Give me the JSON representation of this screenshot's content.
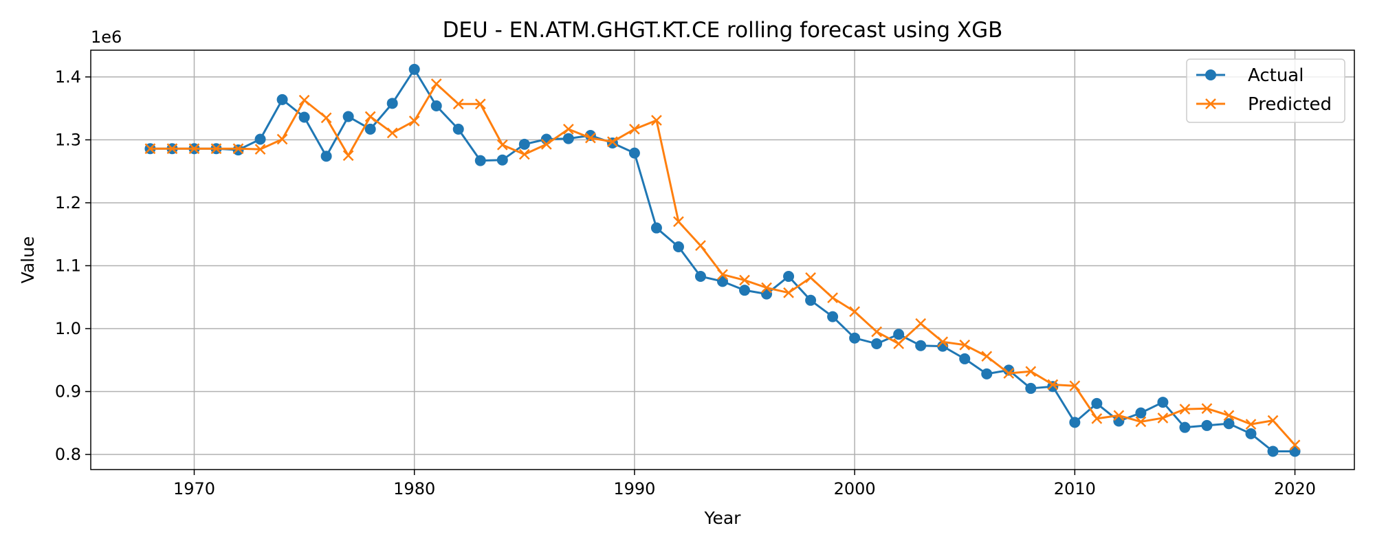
{
  "chart_data": {
    "type": "line",
    "title": "DEU - EN.ATM.GHGT.KT.CE rolling forecast using XGB",
    "xlabel": "Year",
    "ylabel": "Value",
    "y_offset_text": "1e6",
    "xlim": [
      1965.3,
      2022.7
    ],
    "ylim": [
      0.776,
      1.4425
    ],
    "x_ticks": [
      1970,
      1980,
      1990,
      2000,
      2010,
      2020
    ],
    "x_tick_labels": [
      "1970",
      "1980",
      "1990",
      "2000",
      "2010",
      "2020"
    ],
    "y_ticks": [
      0.8,
      0.9,
      1.0,
      1.1,
      1.2,
      1.3,
      1.4
    ],
    "y_tick_labels": [
      "0.8",
      "0.9",
      "1.0",
      "1.1",
      "1.2",
      "1.3",
      "1.4"
    ],
    "grid": true,
    "legend_position": "top-right",
    "x": [
      1968,
      1969,
      1970,
      1971,
      1972,
      1973,
      1974,
      1975,
      1976,
      1977,
      1978,
      1979,
      1980,
      1981,
      1982,
      1983,
      1984,
      1985,
      1986,
      1987,
      1988,
      1989,
      1990,
      1991,
      1992,
      1993,
      1994,
      1995,
      1996,
      1997,
      1998,
      1999,
      2000,
      2001,
      2002,
      2003,
      2004,
      2005,
      2006,
      2007,
      2008,
      2009,
      2010,
      2011,
      2012,
      2013,
      2014,
      2015,
      2016,
      2017,
      2018,
      2019,
      2020
    ],
    "series": [
      {
        "name": "Actual",
        "color": "#1f77b4",
        "marker": "circle",
        "values": [
          1.286,
          1.286,
          1.286,
          1.286,
          1.284,
          1.301,
          1.364,
          1.336,
          1.274,
          1.337,
          1.317,
          1.358,
          1.412,
          1.354,
          1.317,
          1.267,
          1.268,
          1.293,
          1.301,
          1.302,
          1.307,
          1.295,
          1.279,
          1.16,
          1.13,
          1.083,
          1.075,
          1.061,
          1.055,
          1.083,
          1.045,
          1.019,
          0.985,
          0.976,
          0.991,
          0.973,
          0.972,
          0.952,
          0.928,
          0.934,
          0.905,
          0.908,
          0.851,
          0.881,
          0.853,
          0.866,
          0.883,
          0.843,
          0.846,
          0.849,
          0.833,
          0.805,
          0.805
        ]
      },
      {
        "name": "Predicted",
        "color": "#ff7f0e",
        "marker": "x",
        "values": [
          1.286,
          1.286,
          1.286,
          1.286,
          1.286,
          1.285,
          1.301,
          1.363,
          1.335,
          1.275,
          1.337,
          1.311,
          1.33,
          1.389,
          1.357,
          1.357,
          1.292,
          1.277,
          1.293,
          1.317,
          1.303,
          1.297,
          1.317,
          1.331,
          1.17,
          1.132,
          1.086,
          1.077,
          1.065,
          1.057,
          1.081,
          1.049,
          1.027,
          0.995,
          0.976,
          1.008,
          0.979,
          0.974,
          0.956,
          0.929,
          0.932,
          0.911,
          0.909,
          0.857,
          0.862,
          0.852,
          0.858,
          0.872,
          0.873,
          0.862,
          0.848,
          0.854,
          0.815
        ]
      }
    ]
  }
}
